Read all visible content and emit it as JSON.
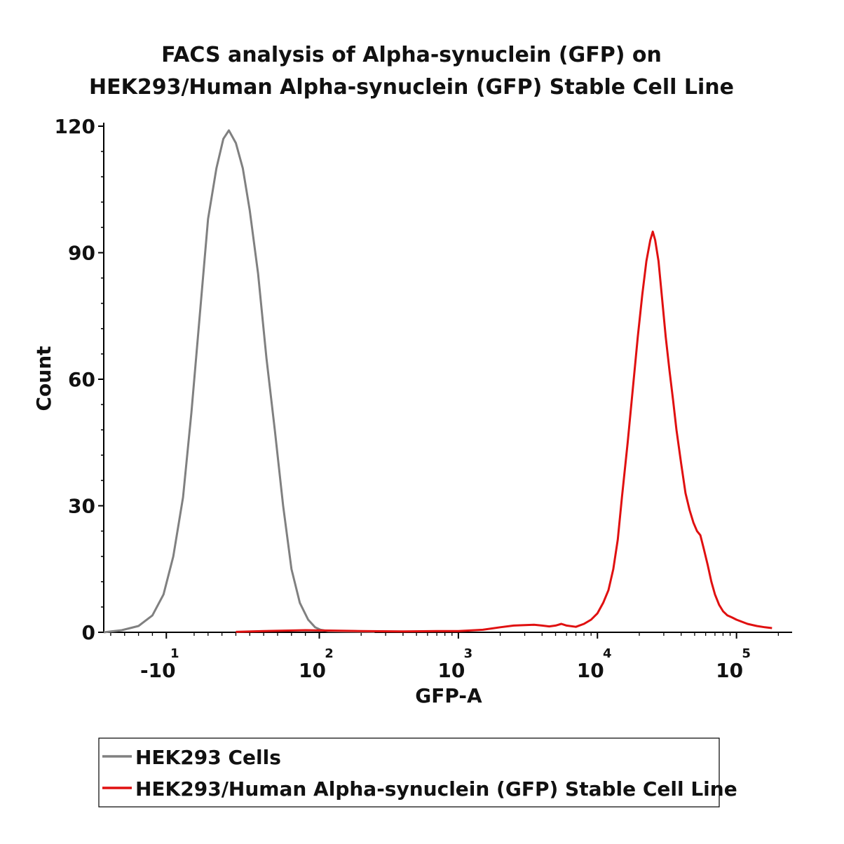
{
  "chart_data": {
    "type": "line",
    "title": [
      "FACS analysis of Alpha-synuclein (GFP) on",
      "HEK293/Human Alpha-synuclein (GFP) Stable Cell Line"
    ],
    "xlabel": "GFP-A",
    "ylabel": "Count",
    "x_scale": "biexponential",
    "x_ticks": [
      {
        "value": -10,
        "label": "-10",
        "exp": "1"
      },
      {
        "value": 100,
        "label": "10",
        "exp": "2"
      },
      {
        "value": 1000,
        "label": "10",
        "exp": "3"
      },
      {
        "value": 10000,
        "label": "10",
        "exp": "4"
      },
      {
        "value": 100000,
        "label": "10",
        "exp": "5"
      }
    ],
    "y_ticks": [
      "0",
      "30",
      "60",
      "90",
      "120"
    ],
    "ylim": [
      0,
      120
    ],
    "grid": false,
    "legend_position": "bottom",
    "series": [
      {
        "name": "HEK293 Cells",
        "color": "#808080",
        "points": [
          [
            -55,
            0
          ],
          [
            -42,
            0.5
          ],
          [
            -30,
            1.5
          ],
          [
            -20,
            4
          ],
          [
            -12,
            9
          ],
          [
            -5,
            18
          ],
          [
            2,
            32
          ],
          [
            8,
            52
          ],
          [
            14,
            75
          ],
          [
            20,
            98
          ],
          [
            26,
            110
          ],
          [
            31,
            117
          ],
          [
            35,
            119
          ],
          [
            40,
            116
          ],
          [
            45,
            110
          ],
          [
            50,
            100
          ],
          [
            56,
            85
          ],
          [
            62,
            65
          ],
          [
            68,
            48
          ],
          [
            74,
            30
          ],
          [
            80,
            15
          ],
          [
            86,
            7
          ],
          [
            92,
            3
          ],
          [
            97,
            1.2
          ],
          [
            102,
            0.6
          ],
          [
            115,
            0.3
          ],
          [
            150,
            0.2
          ],
          [
            250,
            0.1
          ]
        ]
      },
      {
        "name": "HEK293/Human Alpha-synuclein (GFP) Stable Cell Line",
        "color": "#e01010",
        "points": [
          [
            40,
            0.1
          ],
          [
            60,
            0.3
          ],
          [
            90,
            0.5
          ],
          [
            130,
            0.4
          ],
          [
            200,
            0.3
          ],
          [
            400,
            0.2
          ],
          [
            700,
            0.3
          ],
          [
            1000,
            0.3
          ],
          [
            1500,
            0.6
          ],
          [
            2000,
            1.2
          ],
          [
            2500,
            1.6
          ],
          [
            3000,
            1.7
          ],
          [
            3500,
            1.8
          ],
          [
            4000,
            1.6
          ],
          [
            4500,
            1.4
          ],
          [
            5000,
            1.6
          ],
          [
            5500,
            2.0
          ],
          [
            6000,
            1.6
          ],
          [
            7000,
            1.3
          ],
          [
            8000,
            2
          ],
          [
            9000,
            3
          ],
          [
            10000,
            4.5
          ],
          [
            11000,
            7
          ],
          [
            12000,
            10
          ],
          [
            13000,
            15
          ],
          [
            14000,
            22
          ],
          [
            15000,
            32
          ],
          [
            16500,
            45
          ],
          [
            18000,
            58
          ],
          [
            19500,
            70
          ],
          [
            21000,
            80
          ],
          [
            22500,
            88
          ],
          [
            24000,
            93
          ],
          [
            25000,
            95
          ],
          [
            26000,
            93
          ],
          [
            27500,
            88
          ],
          [
            29000,
            80
          ],
          [
            31000,
            70
          ],
          [
            33000,
            62
          ],
          [
            35000,
            55
          ],
          [
            37000,
            48
          ],
          [
            40000,
            40
          ],
          [
            43000,
            33
          ],
          [
            46000,
            29
          ],
          [
            49000,
            26
          ],
          [
            52000,
            24
          ],
          [
            55000,
            23
          ],
          [
            58000,
            20
          ],
          [
            62000,
            16
          ],
          [
            66000,
            12
          ],
          [
            70000,
            9
          ],
          [
            75000,
            6.5
          ],
          [
            80000,
            5
          ],
          [
            86000,
            4
          ],
          [
            93000,
            3.5
          ],
          [
            100000,
            3
          ],
          [
            120000,
            2
          ],
          [
            140000,
            1.5
          ],
          [
            160000,
            1.2
          ],
          [
            180000,
            1.0
          ]
        ]
      }
    ]
  }
}
